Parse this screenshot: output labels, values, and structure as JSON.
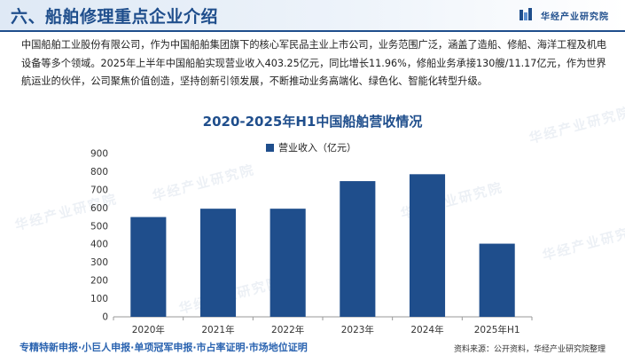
{
  "header": {
    "title": "六、船舶修理重点企业介绍",
    "brand": "华经产业研究院"
  },
  "intro_text": "中国船舶工业股份有限公司，作为中国船舶集团旗下的核心军民品主业上市公司，业务范围广泛，涵盖了造船、修船、海洋工程及机电设备等多个领域。2025年上半年中国船舶实现营业收入403.25亿元，同比增长11.96%，修船业务承接130艘/11.17亿元，作为世界航运业的伙伴，公司聚焦价值创造，坚持创新引领发展，不断推动业务高端化、绿色化、智能化转型升级。",
  "chart_data": {
    "type": "bar",
    "title": "2020-2025年H1中国船舶营收情况",
    "categories": [
      "2020年",
      "2021年",
      "2022年",
      "2023年",
      "2024年",
      "2025年H1"
    ],
    "series": [
      {
        "name": "营业收入（亿元）",
        "values": [
          550,
          596,
          596,
          748,
          786,
          403.25
        ],
        "color": "#1f4e8c"
      }
    ],
    "ylim": [
      0,
      900
    ],
    "yticks": [
      0,
      100,
      200,
      300,
      400,
      500,
      600,
      700,
      800,
      900
    ],
    "grid": false,
    "legend_position": "top-center"
  },
  "watermarks": [
    "华经产业研究院",
    "华经产业研究院",
    "华经产业研究院",
    "华经产业研究院",
    "华经产业研究院",
    "华经产业研究院"
  ],
  "footer": {
    "left": "专精特新申报·小巨人申报·单项冠军申报·市占率证明·市场地位证明",
    "source": "资料来源：公开资料，华经产业研究院整理"
  }
}
